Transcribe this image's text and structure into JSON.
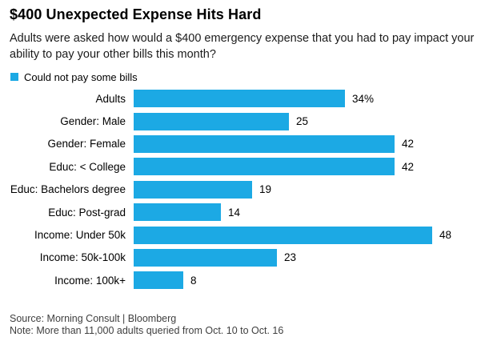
{
  "title": "$400 Unexpected Expense Hits Hard",
  "subtitle": "Adults were asked how would a $400 emergency expense that you had to pay impact your ability to pay your other bills this month?",
  "legend": {
    "label": "Could not pay some bills"
  },
  "colors": {
    "bar": "#1CA9E4",
    "title_text": "#000000",
    "body_text": "#1b1b1b",
    "footer_text": "#3f3f3f"
  },
  "chart_data": {
    "type": "bar",
    "orientation": "horizontal",
    "title": "$400 Unexpected Expense Hits Hard",
    "series_name": "Could not pay some bills",
    "categories": [
      "Adults",
      "Gender: Male",
      "Gender: Female",
      "Educ: < College",
      "Educ: Bachelors degree",
      "Educ: Post-grad",
      "Income: Under 50k",
      "Income: 50k-100k",
      "Income: 100k+"
    ],
    "values": [
      34,
      25,
      42,
      42,
      19,
      14,
      48,
      23,
      8
    ],
    "value_labels": [
      "34%",
      "25",
      "42",
      "42",
      "19",
      "14",
      "48",
      "23",
      "8"
    ],
    "unit": "percent",
    "xlim": [
      0,
      50
    ],
    "grid": false,
    "legend_position": "top-left",
    "bar_color": "#1CA9E4"
  },
  "footer": {
    "source": "Source: Morning Consult | Bloomberg",
    "note": "Note: More than 11,000 adults queried from Oct. 10 to Oct. 16"
  }
}
